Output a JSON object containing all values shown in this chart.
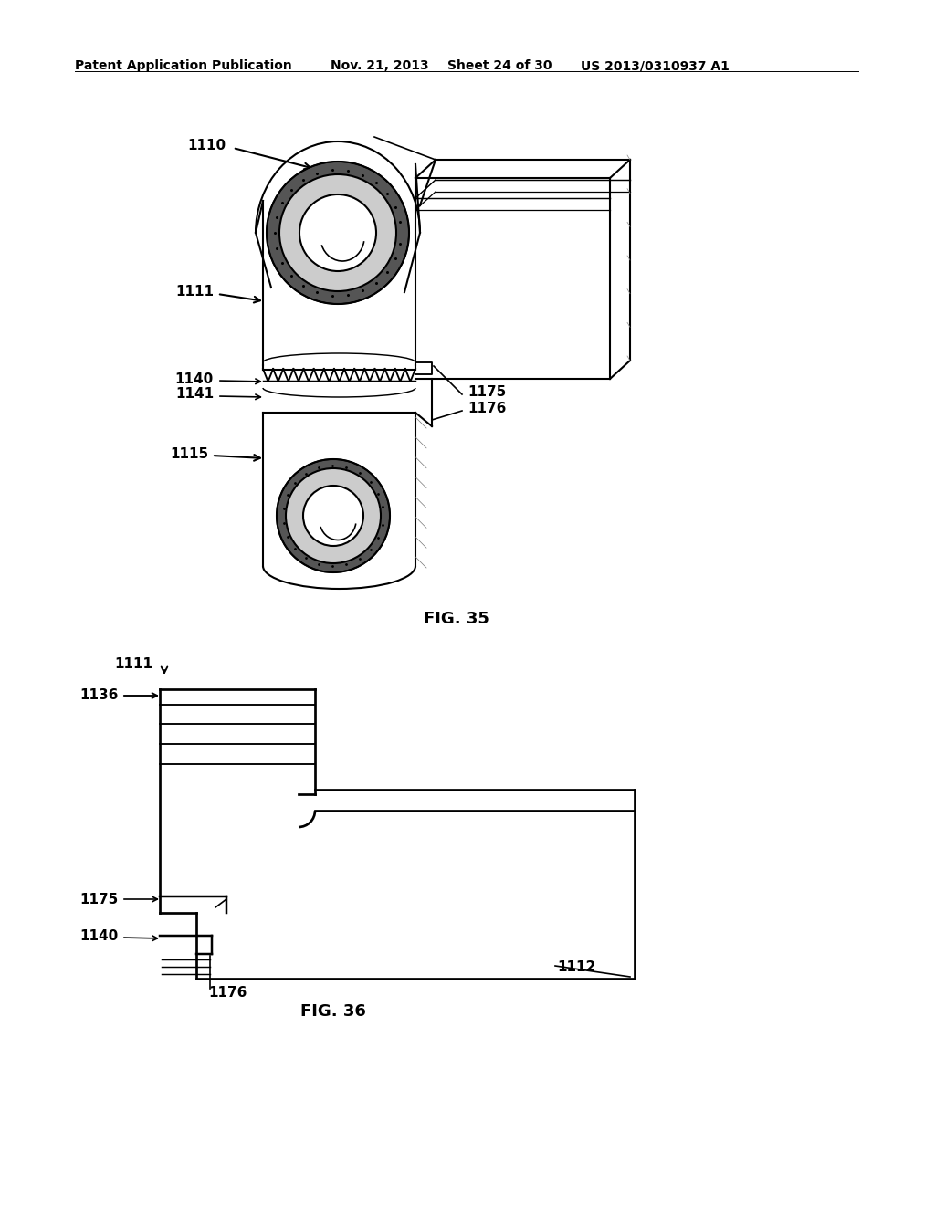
{
  "bg_color": "#ffffff",
  "header_left": "Patent Application Publication",
  "header_mid1": "Nov. 21, 2013",
  "header_mid2": "Sheet 24 of 30",
  "header_right": "US 2013/0310937 A1",
  "fig35_caption": "FIG. 35",
  "fig36_caption": "FIG. 36",
  "lc": "#000000",
  "lw": 1.5,
  "fs": 11,
  "fs_header": 10,
  "fs_caption": 13
}
